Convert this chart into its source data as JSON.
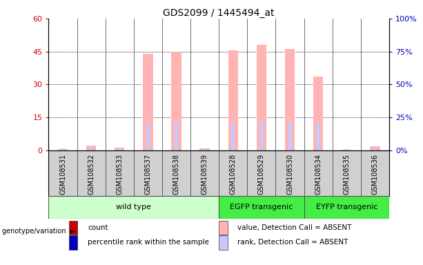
{
  "title": "GDS2099 / 1445494_at",
  "samples": [
    "GSM108531",
    "GSM108532",
    "GSM108533",
    "GSM108537",
    "GSM108538",
    "GSM108539",
    "GSM108528",
    "GSM108529",
    "GSM108530",
    "GSM108534",
    "GSM108535",
    "GSM108536"
  ],
  "groups": [
    {
      "label": "wild type",
      "color": "#ccffcc",
      "start": 0,
      "end": 6
    },
    {
      "label": "EGFP transgenic",
      "color": "#44ee44",
      "start": 6,
      "end": 9
    },
    {
      "label": "EYFP transgenic",
      "color": "#44ee44",
      "start": 9,
      "end": 12
    }
  ],
  "absent_value_bars": [
    0.5,
    2.2,
    1.2,
    44.0,
    45.0,
    1.0,
    45.5,
    48.0,
    46.0,
    33.5,
    0.3,
    2.0
  ],
  "absent_rank_bars": [
    0.8,
    1.2,
    0.8,
    12.5,
    13.0,
    0.8,
    12.5,
    13.5,
    13.0,
    12.5,
    0.5,
    0.8
  ],
  "ylim_left": [
    0,
    60
  ],
  "ylim_right": [
    0,
    100
  ],
  "yticks_left": [
    0,
    15,
    30,
    45,
    60
  ],
  "yticks_right": [
    0,
    25,
    50,
    75,
    100
  ],
  "ytick_labels_left": [
    "0",
    "15",
    "30",
    "45",
    "60"
  ],
  "ytick_labels_right": [
    "0%",
    "25%",
    "50%",
    "75%",
    "100%"
  ],
  "color_absent_value": "#ffb3b3",
  "color_absent_rank": "#c8c8ff",
  "color_count": "#cc0000",
  "color_percentile": "#0000bb",
  "legend_items": [
    {
      "color": "#cc0000",
      "label": "count"
    },
    {
      "color": "#0000bb",
      "label": "percentile rank within the sample"
    },
    {
      "color": "#ffb3b3",
      "label": "value, Detection Call = ABSENT"
    },
    {
      "color": "#c8c8ff",
      "label": "rank, Detection Call = ABSENT"
    }
  ],
  "group_label": "genotype/variation",
  "absent_bar_width": 0.35,
  "rank_bar_width": 0.12
}
